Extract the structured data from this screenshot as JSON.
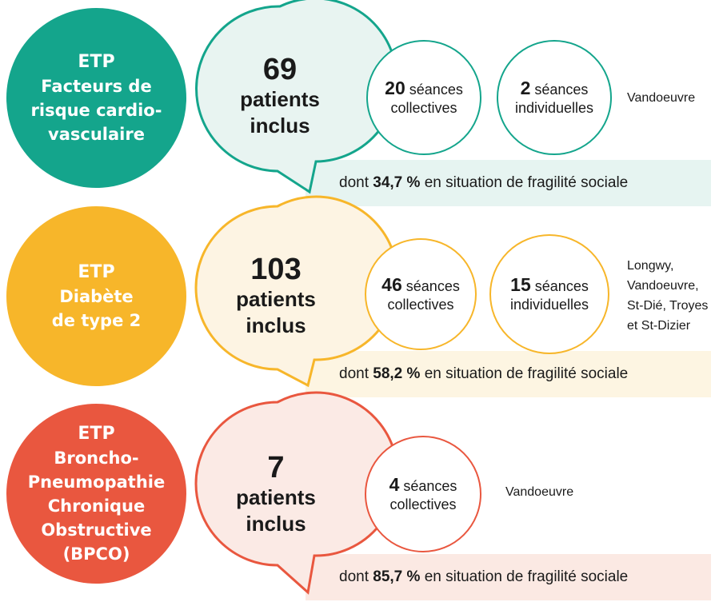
{
  "colors": {
    "green": "#14a58c",
    "green_light": "#e6f4f1",
    "green_fill": "#e8f4f1",
    "yellow": "#f7b62a",
    "yellow_light": "#fdf5e2",
    "yellow_fill": "#fdf4e3",
    "red": "#e9573f",
    "red_light": "#fbe9e3",
    "red_fill": "#fbeae5"
  },
  "programs": [
    {
      "label": "ETP",
      "title": "Facteurs de\nrisque cardio-\nvasculaire",
      "patients_number": "69",
      "patients_text": "patients",
      "patients_text2": "inclus",
      "sessions": [
        {
          "number": "20",
          "word": "séances",
          "type": "collectives"
        },
        {
          "number": "2",
          "word": "séances",
          "type": "individuelles"
        }
      ],
      "places": "Vandoeuvre",
      "band": {
        "prefix": "dont ",
        "percent": "34,7 %",
        "suffix": " en situation de fragilité sociale"
      }
    },
    {
      "label": "ETP",
      "title": "Diabète\nde type 2",
      "patients_number": "103",
      "patients_text": "patients",
      "patients_text2": "inclus",
      "sessions": [
        {
          "number": "46",
          "word": "séances",
          "type": "collectives"
        },
        {
          "number": "15",
          "word": "séances",
          "type": "individuelles"
        }
      ],
      "places": "Longwy,\nVandoeuvre,\nSt-Dié, Troyes\net St-Dizier",
      "band": {
        "prefix": "dont ",
        "percent": "58,2 %",
        "suffix": " en situation de fragilité sociale"
      }
    },
    {
      "label": "ETP",
      "title": "Broncho-\nPneumopathie\nChronique\nObstructive\n(BPCO)",
      "patients_number": "7",
      "patients_text": "patients",
      "patients_text2": "inclus",
      "sessions": [
        {
          "number": "4",
          "word": "séances",
          "type": "collectives"
        }
      ],
      "places": "Vandoeuvre",
      "band": {
        "prefix": "dont ",
        "percent": "85,7 %",
        "suffix": " en situation de fragilité sociale"
      }
    }
  ]
}
